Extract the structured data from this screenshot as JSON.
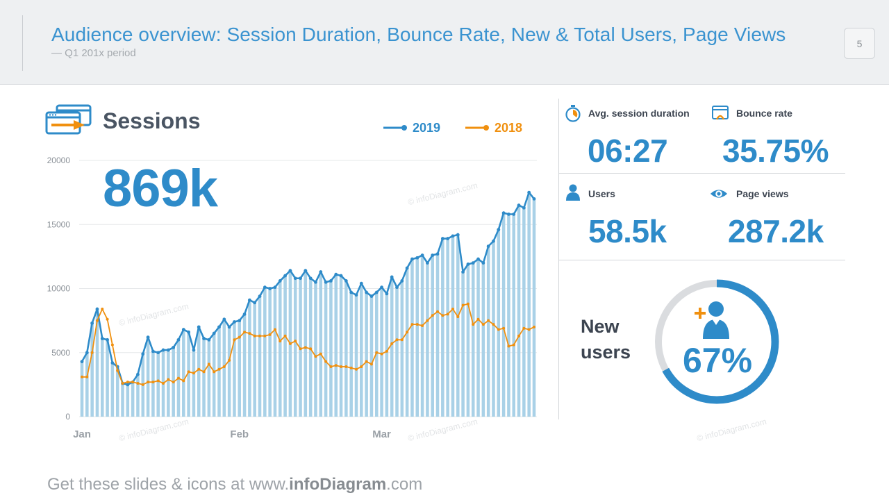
{
  "header": {
    "title": "Audience overview: Session Duration, Bounce Rate, New & Total Users, Page Views",
    "subtitle": "— Q1 201x period",
    "page_number": "5"
  },
  "colors": {
    "accent_blue": "#2e8bc9",
    "bar_blue": "#a9d1e7",
    "orange": "#f0900f",
    "text_dark": "#3c4450",
    "donut_track": "#dadcdf"
  },
  "sessions": {
    "title": "Sessions",
    "total": "869k",
    "icon": "window-arrow-icon"
  },
  "kpis": [
    {
      "label": "Avg. session duration",
      "value": "06:27",
      "icon": "stopwatch-icon"
    },
    {
      "label": "Bounce rate",
      "value": "35.75%",
      "icon": "bounce-window-icon"
    },
    {
      "label": "Users",
      "value": "58.5k",
      "icon": "user-icon"
    },
    {
      "label": "Page views",
      "value": "287.2k",
      "icon": "eye-icon"
    }
  ],
  "new_users": {
    "label_line1": "New",
    "label_line2": "users",
    "value": "67%",
    "fraction": 0.67,
    "icon": "add-user-icon"
  },
  "watermarks": [
    "© infoDiagram.com"
  ],
  "footer": {
    "prefix": "Get these slides & icons at www.",
    "brand": "infoDiagram",
    "suffix": ".com"
  },
  "chart_data": {
    "type": "line",
    "ylim": [
      0,
      20000
    ],
    "yticks": [
      0,
      5000,
      10000,
      15000,
      20000
    ],
    "xtick_labels": [
      {
        "label": "Jan",
        "index": 0
      },
      {
        "label": "Feb",
        "index": 31
      },
      {
        "label": "Mar",
        "index": 59
      }
    ],
    "bars_follow_series": "2019",
    "series": [
      {
        "name": "2019",
        "color": "#2e8bc9",
        "values": [
          4300,
          5000,
          7300,
          8400,
          6100,
          6000,
          4200,
          3900,
          2600,
          2500,
          2700,
          3300,
          4900,
          6200,
          5100,
          5000,
          5200,
          5200,
          5400,
          6000,
          6800,
          6600,
          5200,
          7000,
          6100,
          6000,
          6500,
          7000,
          7600,
          7000,
          7400,
          7500,
          8000,
          9100,
          8900,
          9400,
          10100,
          10000,
          10100,
          10600,
          11000,
          11400,
          10800,
          10800,
          11400,
          10800,
          10500,
          11300,
          10500,
          10600,
          11100,
          11000,
          10600,
          9700,
          9500,
          10400,
          9700,
          9400,
          9700,
          10100,
          9600,
          10900,
          10100,
          10600,
          11600,
          12300,
          12400,
          12600,
          12000,
          12600,
          12700,
          13900,
          13900,
          14100,
          14200,
          11300,
          11900,
          12000,
          12300,
          12000,
          13300,
          13700,
          14600,
          15900,
          15800,
          15800,
          16500,
          16300,
          17500,
          17000
        ]
      },
      {
        "name": "2018",
        "color": "#f0900f",
        "values": [
          3100,
          3100,
          5000,
          7500,
          8400,
          7600,
          5600,
          3600,
          2600,
          2700,
          2700,
          2600,
          2500,
          2700,
          2700,
          2800,
          2600,
          2900,
          2700,
          3000,
          2800,
          3500,
          3400,
          3700,
          3500,
          4100,
          3500,
          3700,
          3900,
          4400,
          6000,
          6200,
          6600,
          6500,
          6300,
          6300,
          6300,
          6400,
          6800,
          5900,
          6300,
          5700,
          5900,
          5300,
          5400,
          5300,
          4700,
          4900,
          4300,
          3900,
          4000,
          3900,
          3900,
          3800,
          3700,
          3900,
          4300,
          4100,
          5000,
          4900,
          5100,
          5700,
          6000,
          6000,
          6600,
          7200,
          7200,
          7100,
          7500,
          7900,
          8200,
          7900,
          8000,
          8400,
          7800,
          8700,
          8800,
          7200,
          7600,
          7200,
          7500,
          7200,
          6800,
          6900,
          5500,
          5600,
          6300,
          6900,
          6800,
          7000
        ]
      }
    ]
  }
}
